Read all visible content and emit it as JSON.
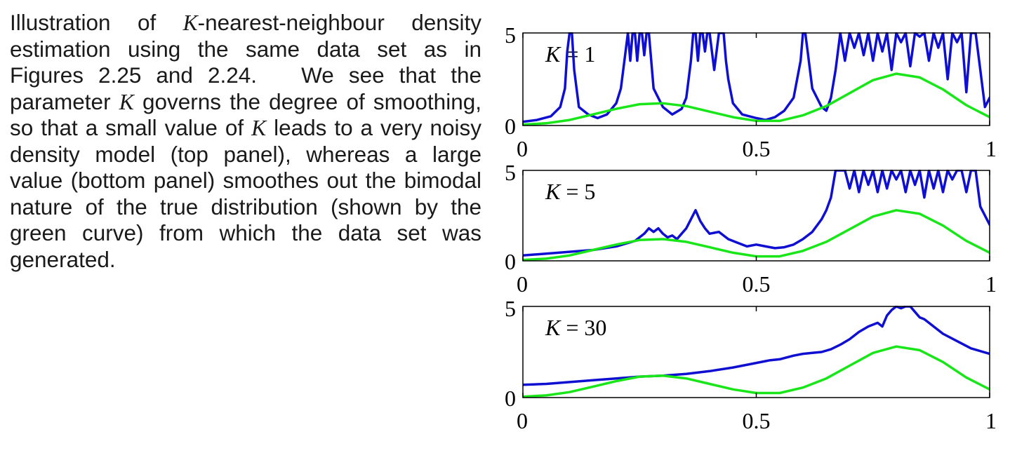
{
  "caption": {
    "segments": [
      {
        "t": "Illustration of "
      },
      {
        "t": "K",
        "math": true
      },
      {
        "t": "-nearest-neighbour den­sity estimation using the same data set as in Figures 2.25 and 2.24.   We see that the parameter "
      },
      {
        "t": "K",
        "math": true
      },
      {
        "t": " governs the degree of smoothing, so that a small value of "
      },
      {
        "t": "K",
        "math": true
      },
      {
        "t": " leads to a very noisy density model (top panel), whereas a large value (bot­tom panel) smoothes out the bimodal na­ture of the true distribution (shown by the green curve) from which the data set was generated."
      }
    ]
  },
  "colors": {
    "estimate": "#0f0fd2",
    "true_density": "#19e619",
    "axes": "#000000"
  },
  "chart_data": [
    {
      "type": "line",
      "label_var": "K",
      "label_eq": " = 1",
      "xlim": [
        0,
        1
      ],
      "ylim": [
        0,
        5
      ],
      "xticks": [
        0,
        0.5,
        1
      ],
      "xtick_labels": [
        "0",
        "0.5",
        "1"
      ],
      "yticks": [
        0,
        5
      ],
      "ytick_labels": [
        "0",
        "5"
      ],
      "series": [
        {
          "role": "estimate",
          "x": [
            0,
            0.03,
            0.06,
            0.08,
            0.09,
            0.095,
            0.1,
            0.105,
            0.11,
            0.12,
            0.14,
            0.16,
            0.18,
            0.2,
            0.21,
            0.22,
            0.225,
            0.23,
            0.235,
            0.24,
            0.245,
            0.25,
            0.255,
            0.26,
            0.265,
            0.27,
            0.28,
            0.3,
            0.32,
            0.34,
            0.35,
            0.36,
            0.365,
            0.37,
            0.375,
            0.38,
            0.385,
            0.39,
            0.395,
            0.4,
            0.41,
            0.42,
            0.425,
            0.43,
            0.435,
            0.44,
            0.45,
            0.47,
            0.5,
            0.52,
            0.54,
            0.56,
            0.58,
            0.595,
            0.6,
            0.605,
            0.61,
            0.62,
            0.64,
            0.65,
            0.66,
            0.67,
            0.68,
            0.69,
            0.7,
            0.71,
            0.72,
            0.73,
            0.74,
            0.75,
            0.76,
            0.77,
            0.78,
            0.79,
            0.8,
            0.81,
            0.82,
            0.83,
            0.84,
            0.85,
            0.86,
            0.87,
            0.88,
            0.89,
            0.9,
            0.91,
            0.92,
            0.93,
            0.94,
            0.95,
            0.96,
            0.97,
            0.98,
            0.99,
            1.0
          ],
          "y": [
            0.2,
            0.3,
            0.5,
            1.0,
            2.0,
            4.0,
            5.0,
            5.0,
            3.0,
            1.0,
            0.6,
            0.4,
            0.6,
            1.2,
            2.0,
            4.0,
            5.0,
            3.5,
            5.0,
            5.0,
            3.5,
            5.0,
            5.0,
            3.8,
            5.0,
            5.0,
            2.0,
            1.0,
            0.6,
            0.9,
            1.5,
            3.5,
            5.0,
            5.0,
            3.5,
            5.0,
            5.0,
            4.0,
            5.0,
            5.0,
            3.0,
            5.0,
            5.0,
            5.0,
            3.5,
            2.5,
            1.2,
            0.6,
            0.4,
            0.3,
            0.45,
            0.8,
            1.5,
            3.5,
            5.0,
            5.0,
            4.0,
            2.0,
            1.0,
            0.8,
            1.5,
            3.0,
            5.0,
            3.5,
            5.0,
            4.2,
            5.0,
            3.8,
            5.0,
            3.5,
            5.0,
            4.0,
            5.0,
            3.0,
            5.0,
            4.5,
            5.0,
            3.2,
            5.0,
            4.8,
            5.0,
            3.5,
            5.0,
            4.2,
            5.0,
            2.5,
            5.0,
            4.5,
            5.0,
            1.8,
            5.0,
            5.0,
            3.0,
            1.0,
            1.5
          ]
        },
        {
          "role": "true_density",
          "x": [
            0,
            0.05,
            0.1,
            0.15,
            0.2,
            0.25,
            0.3,
            0.35,
            0.4,
            0.45,
            0.5,
            0.55,
            0.6,
            0.65,
            0.7,
            0.75,
            0.8,
            0.85,
            0.9,
            0.95,
            1.0
          ],
          "y": [
            0.05,
            0.12,
            0.3,
            0.6,
            0.9,
            1.15,
            1.2,
            1.05,
            0.75,
            0.45,
            0.25,
            0.25,
            0.55,
            1.05,
            1.75,
            2.45,
            2.8,
            2.6,
            1.95,
            1.1,
            0.45
          ]
        }
      ]
    },
    {
      "type": "line",
      "label_var": "K",
      "label_eq": " = 5",
      "xlim": [
        0,
        1
      ],
      "ylim": [
        0,
        5
      ],
      "xticks": [
        0,
        0.5,
        1
      ],
      "xtick_labels": [
        "0",
        "0.5",
        "1"
      ],
      "yticks": [
        0,
        5
      ],
      "ytick_labels": [
        "0",
        "5"
      ],
      "series": [
        {
          "role": "estimate",
          "x": [
            0,
            0.05,
            0.1,
            0.15,
            0.2,
            0.24,
            0.26,
            0.27,
            0.28,
            0.29,
            0.3,
            0.31,
            0.32,
            0.33,
            0.34,
            0.35,
            0.36,
            0.37,
            0.38,
            0.39,
            0.4,
            0.42,
            0.44,
            0.46,
            0.48,
            0.5,
            0.52,
            0.54,
            0.56,
            0.58,
            0.6,
            0.62,
            0.64,
            0.65,
            0.66,
            0.67,
            0.68,
            0.69,
            0.7,
            0.71,
            0.72,
            0.73,
            0.74,
            0.75,
            0.76,
            0.77,
            0.78,
            0.79,
            0.8,
            0.81,
            0.82,
            0.83,
            0.84,
            0.85,
            0.86,
            0.87,
            0.88,
            0.89,
            0.9,
            0.91,
            0.92,
            0.93,
            0.94,
            0.95,
            0.96,
            0.97,
            0.98,
            1.0
          ],
          "y": [
            0.3,
            0.4,
            0.5,
            0.6,
            0.8,
            1.1,
            1.5,
            1.8,
            1.6,
            1.8,
            1.5,
            1.3,
            1.4,
            1.2,
            1.5,
            1.8,
            2.3,
            2.8,
            2.2,
            1.8,
            1.5,
            1.6,
            1.2,
            1.0,
            0.8,
            0.9,
            0.8,
            0.7,
            0.75,
            0.9,
            1.2,
            1.6,
            2.3,
            2.8,
            3.5,
            5.0,
            5.0,
            5.0,
            4.0,
            5.0,
            3.8,
            5.0,
            4.2,
            5.0,
            3.8,
            5.0,
            4.0,
            5.0,
            4.5,
            5.0,
            3.8,
            5.0,
            4.2,
            5.0,
            3.5,
            5.0,
            4.0,
            5.0,
            3.8,
            5.0,
            4.5,
            5.0,
            5.0,
            3.8,
            5.0,
            5.0,
            3.0,
            2.0
          ]
        },
        {
          "role": "true_density",
          "x": [
            0,
            0.05,
            0.1,
            0.15,
            0.2,
            0.25,
            0.3,
            0.35,
            0.4,
            0.45,
            0.5,
            0.55,
            0.6,
            0.65,
            0.7,
            0.75,
            0.8,
            0.85,
            0.9,
            0.95,
            1.0
          ],
          "y": [
            0.05,
            0.12,
            0.3,
            0.6,
            0.9,
            1.15,
            1.2,
            1.05,
            0.75,
            0.45,
            0.25,
            0.25,
            0.55,
            1.05,
            1.75,
            2.45,
            2.8,
            2.6,
            1.95,
            1.1,
            0.45
          ]
        }
      ]
    },
    {
      "type": "line",
      "label_var": "K",
      "label_eq": " = 30",
      "xlim": [
        0,
        1
      ],
      "ylim": [
        0,
        5
      ],
      "xticks": [
        0,
        0.5,
        1
      ],
      "xtick_labels": [
        "0",
        "0.5",
        "1"
      ],
      "yticks": [
        0,
        5
      ],
      "ytick_labels": [
        "0",
        "5"
      ],
      "series": [
        {
          "role": "estimate",
          "x": [
            0,
            0.05,
            0.1,
            0.15,
            0.2,
            0.25,
            0.3,
            0.35,
            0.4,
            0.45,
            0.5,
            0.52,
            0.53,
            0.55,
            0.58,
            0.6,
            0.62,
            0.64,
            0.66,
            0.68,
            0.7,
            0.72,
            0.74,
            0.76,
            0.77,
            0.78,
            0.79,
            0.8,
            0.81,
            0.82,
            0.83,
            0.84,
            0.85,
            0.86,
            0.87,
            0.88,
            0.9,
            0.93,
            0.96,
            1.0
          ],
          "y": [
            0.7,
            0.75,
            0.85,
            0.95,
            1.05,
            1.15,
            1.2,
            1.3,
            1.45,
            1.65,
            1.9,
            2.0,
            2.05,
            2.1,
            2.3,
            2.4,
            2.45,
            2.5,
            2.65,
            2.9,
            3.2,
            3.6,
            3.9,
            4.1,
            3.9,
            4.5,
            4.8,
            5.0,
            4.9,
            5.0,
            5.0,
            4.7,
            4.4,
            4.3,
            4.1,
            3.9,
            3.5,
            3.1,
            2.7,
            2.4
          ]
        },
        {
          "role": "true_density",
          "x": [
            0,
            0.05,
            0.1,
            0.15,
            0.2,
            0.25,
            0.3,
            0.35,
            0.4,
            0.45,
            0.5,
            0.55,
            0.6,
            0.65,
            0.7,
            0.75,
            0.8,
            0.85,
            0.9,
            0.95,
            1.0
          ],
          "y": [
            0.05,
            0.12,
            0.3,
            0.6,
            0.9,
            1.15,
            1.2,
            1.05,
            0.75,
            0.45,
            0.25,
            0.25,
            0.55,
            1.05,
            1.75,
            2.45,
            2.8,
            2.6,
            1.95,
            1.1,
            0.45
          ]
        }
      ]
    }
  ]
}
